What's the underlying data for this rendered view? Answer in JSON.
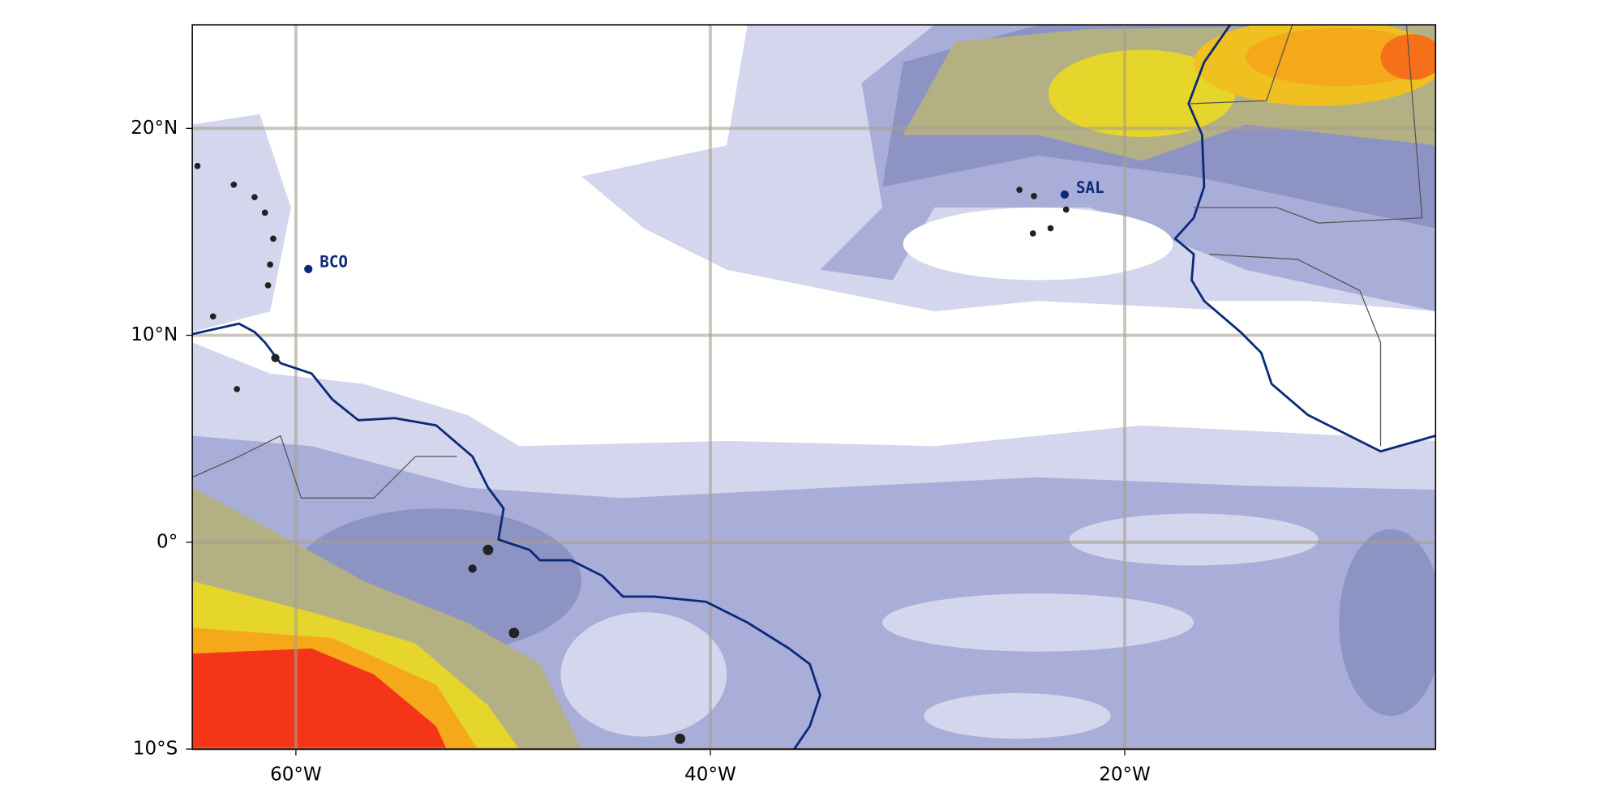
{
  "map": {
    "xlim": [
      -65,
      -5
    ],
    "ylim": [
      -10,
      25
    ],
    "xticks": [
      {
        "value": -60,
        "label": "60°W"
      },
      {
        "value": -40,
        "label": "40°W"
      },
      {
        "value": -20,
        "label": "20°W"
      }
    ],
    "yticks": [
      {
        "value": -10,
        "label": "10°S"
      },
      {
        "value": 0,
        "label": "0°"
      },
      {
        "value": 10,
        "label": "10°N"
      },
      {
        "value": 20,
        "label": "20°N"
      }
    ],
    "grid": true,
    "markers": [
      {
        "label": "BCO",
        "lon": -59.4,
        "lat": 13.2
      },
      {
        "label": "SAL",
        "lon": -22.9,
        "lat": 16.8
      }
    ]
  }
}
